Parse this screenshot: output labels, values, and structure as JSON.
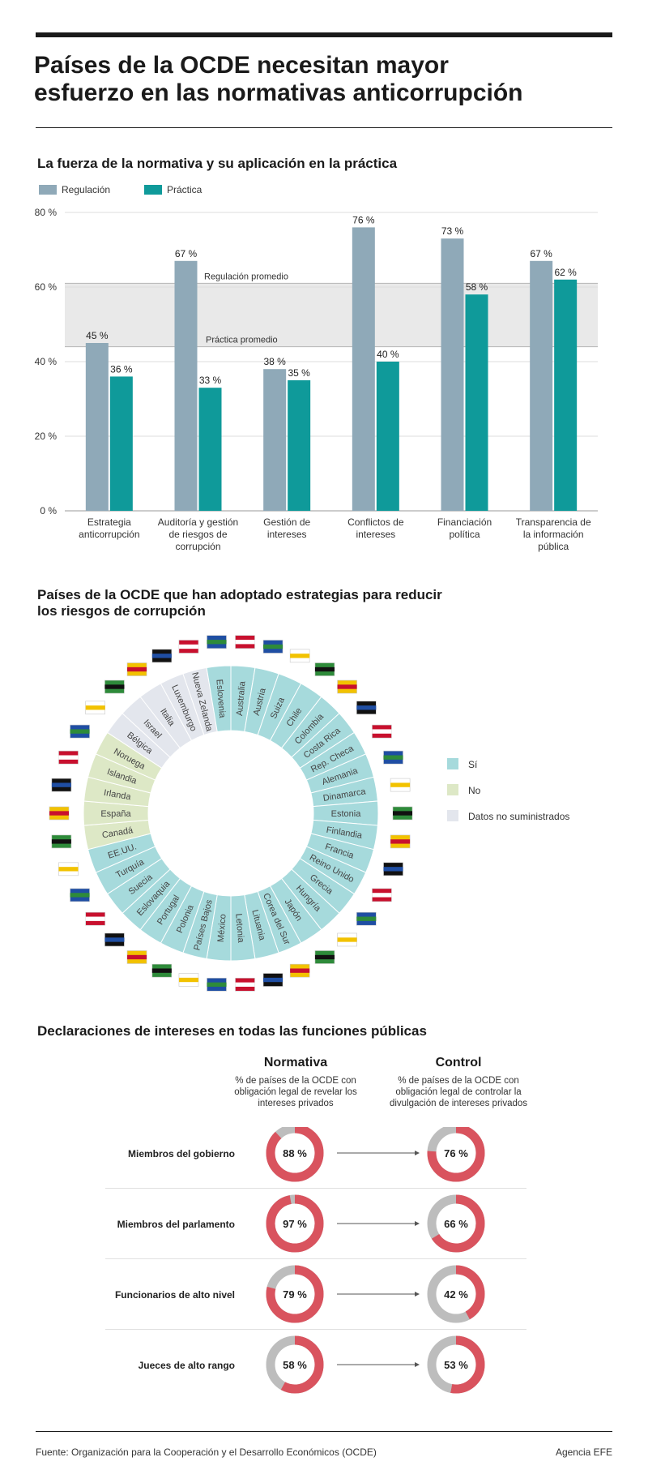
{
  "title": {
    "line1": "Países de la OCDE necesitan mayor",
    "line2": "esfuerzo en las normativas anticorrupción"
  },
  "section1": {
    "heading": "La fuerza de la normativa y su aplicación en la práctica"
  },
  "section2": {
    "heading_line1": "Países de la OCDE que han adoptado estrategias para reducir",
    "heading_line2": "los riesgos de corrupción"
  },
  "section3": {
    "heading": "Declaraciones de intereses en todas las funciones públicas",
    "col1_title": "Normativa",
    "col1_desc": [
      "% de países de la OCDE con",
      "obligación legal de revelar los",
      "intereses privados"
    ],
    "col2_title": "Control",
    "col2_desc": [
      "% de países de la OCDE con",
      "obligación legal de controlar la",
      "divulgación de intereses privados"
    ]
  },
  "footer": {
    "source": "Fuente: Organización para la Cooperación y el Desarrollo Económicos (OCDE)",
    "credit": "Agencia EFE"
  },
  "colors": {
    "regulacion": "#8fa9b8",
    "practica": "#0f9a9a",
    "si": "#a6dadc",
    "no": "#dde8c6",
    "nd": "#e3e6ed",
    "donut_red": "#d9535e",
    "donut_gray": "#bdbdbd",
    "band": "#e9e9e9"
  },
  "chart_data": [
    {
      "type": "bar",
      "title": "La fuerza de la normativa y su aplicación en la práctica",
      "categories": [
        [
          "Estrategia",
          "anticorrupción"
        ],
        [
          "Auditoría y gestión",
          "de riesgos de",
          "corrupción"
        ],
        [
          "Gestión de",
          "intereses"
        ],
        [
          "Conflictos de",
          "intereses"
        ],
        [
          "Financiación",
          "política"
        ],
        [
          "Transparencia de",
          "la información",
          "pública"
        ]
      ],
      "series": [
        {
          "name": "Regulación",
          "values": [
            45,
            67,
            38,
            76,
            73,
            67
          ]
        },
        {
          "name": "Práctica",
          "values": [
            36,
            33,
            35,
            40,
            58,
            62
          ]
        }
      ],
      "value_labels": {
        "Regulación": [
          "45 %",
          "67 %",
          "38 %",
          "76 %",
          "73 %",
          "67 %"
        ],
        "Práctica": [
          "36 %",
          "33 %",
          "35 %",
          "40 %",
          "58 %",
          "62 %"
        ]
      },
      "ylim": [
        0,
        80
      ],
      "yticks": [
        0,
        20,
        40,
        60,
        80
      ],
      "ytick_labels": [
        "0 %",
        "20 %",
        "40 %",
        "60 %",
        "80 %"
      ],
      "reference_lines": [
        {
          "label": "Regulación promedio",
          "value": 61
        },
        {
          "label": "Práctica promedio",
          "value": 44
        }
      ],
      "grid": true,
      "legend": "top-left"
    },
    {
      "type": "pie",
      "title": "Países de la OCDE que han adoptado estrategias para reducir los riesgos de corrupción",
      "legend": [
        {
          "key": "si",
          "label": "Sí"
        },
        {
          "key": "no",
          "label": "No"
        },
        {
          "key": "nd",
          "label": "Datos no suministrados"
        }
      ],
      "countries": [
        {
          "name": "Australia",
          "status": "si"
        },
        {
          "name": "Austria",
          "status": "si"
        },
        {
          "name": "Suiza",
          "status": "si"
        },
        {
          "name": "Chile",
          "status": "si"
        },
        {
          "name": "Colombia",
          "status": "si"
        },
        {
          "name": "Costa Rica",
          "status": "si"
        },
        {
          "name": "Rep. Checa",
          "status": "si"
        },
        {
          "name": "Alemania",
          "status": "si"
        },
        {
          "name": "Dinamarca",
          "status": "si"
        },
        {
          "name": "Estonia",
          "status": "si"
        },
        {
          "name": "Finlandia",
          "status": "si"
        },
        {
          "name": "Francia",
          "status": "si"
        },
        {
          "name": "Reino Unido",
          "status": "si"
        },
        {
          "name": "Grecia",
          "status": "si"
        },
        {
          "name": "Hungría",
          "status": "si"
        },
        {
          "name": "Japón",
          "status": "si"
        },
        {
          "name": "Corea del Sur",
          "status": "si"
        },
        {
          "name": "Lituania",
          "status": "si"
        },
        {
          "name": "Letonia",
          "status": "si"
        },
        {
          "name": "México",
          "status": "si"
        },
        {
          "name": "Países Bajos",
          "status": "si"
        },
        {
          "name": "Polonia",
          "status": "si"
        },
        {
          "name": "Portugal",
          "status": "si"
        },
        {
          "name": "Eslovaquia",
          "status": "si"
        },
        {
          "name": "Suecia",
          "status": "si"
        },
        {
          "name": "Turquía",
          "status": "si"
        },
        {
          "name": "EE.UU.",
          "status": "si"
        },
        {
          "name": "Canadá",
          "status": "no"
        },
        {
          "name": "España",
          "status": "no"
        },
        {
          "name": "Irlanda",
          "status": "no"
        },
        {
          "name": "Islandia",
          "status": "no"
        },
        {
          "name": "Noruega",
          "status": "no"
        },
        {
          "name": "Bélgica",
          "status": "nd"
        },
        {
          "name": "Israel",
          "status": "nd"
        },
        {
          "name": "Italia",
          "status": "nd"
        },
        {
          "name": "Luxemburgo",
          "status": "nd"
        },
        {
          "name": "Nueva Zelanda",
          "status": "nd"
        },
        {
          "name": "Eslovenia",
          "status": "si"
        }
      ]
    },
    {
      "type": "pie",
      "title": "Declaraciones de intereses en todas las funciones públicas",
      "rows": [
        {
          "label": "Miembros del gobierno",
          "normativa": 88,
          "control": 76,
          "normativa_label": "88 %",
          "control_label": "76 %"
        },
        {
          "label": "Miembros del parlamento",
          "normativa": 97,
          "control": 66,
          "normativa_label": "97 %",
          "control_label": "66 %"
        },
        {
          "label": "Funcionarios de alto nivel",
          "normativa": 79,
          "control": 42,
          "normativa_label": "79 %",
          "control_label": "42 %"
        },
        {
          "label": "Jueces de alto rango",
          "normativa": 58,
          "control": 53,
          "normativa_label": "58 %",
          "control_label": "53 %"
        }
      ]
    }
  ]
}
